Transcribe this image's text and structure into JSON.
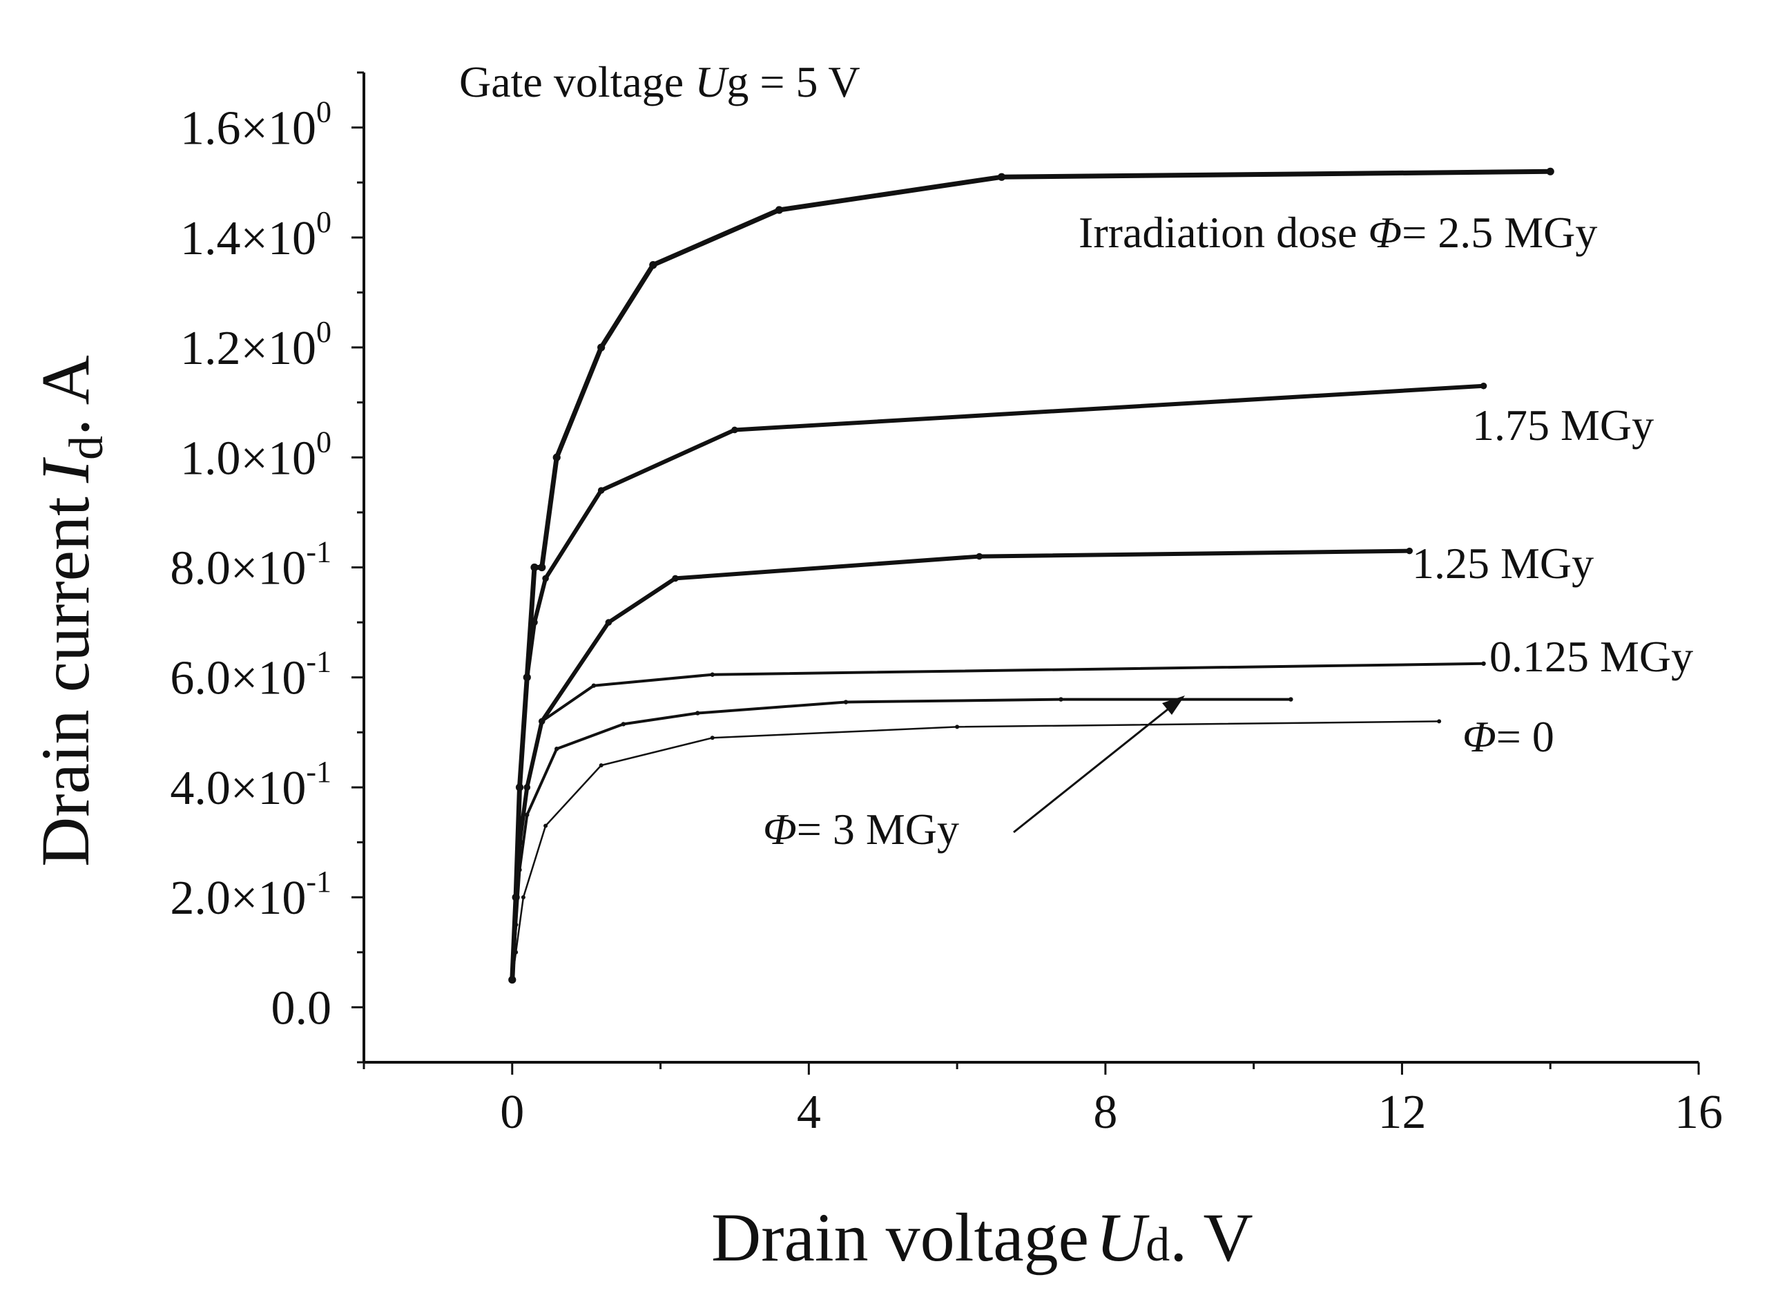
{
  "chart_data": {
    "type": "line",
    "title": "",
    "annotation_title": {
      "prefix": "Gate voltage ",
      "symbol": "U",
      "subscript": "g",
      "suffix": " = 5 V"
    },
    "xlabel": {
      "main": "Drain voltage",
      "symbol": "U",
      "subscript": "d",
      "unit": ". V"
    },
    "ylabel": {
      "main": "Drain current",
      "symbol": "I",
      "subscript": "d",
      "unit": ". A"
    },
    "xlim": [
      -2,
      16
    ],
    "ylim": [
      -0.1,
      1.7
    ],
    "x_ticks": [
      0,
      4,
      8,
      12,
      16
    ],
    "x_tick_labels": [
      "0",
      "4",
      "8",
      "12",
      "16"
    ],
    "y_ticks": [
      0,
      0.2,
      0.4,
      0.6,
      0.8,
      1.0,
      1.2,
      1.4,
      1.6
    ],
    "y_tick_labels": [
      {
        "mantissa": "0.0",
        "exponent": ""
      },
      {
        "mantissa": "2.0×10",
        "exponent": "-1"
      },
      {
        "mantissa": "4.0×10",
        "exponent": "-1"
      },
      {
        "mantissa": "6.0×10",
        "exponent": "-1"
      },
      {
        "mantissa": "8.0×10",
        "exponent": "-1"
      },
      {
        "mantissa": "1.0×10",
        "exponent": "0"
      },
      {
        "mantissa": "1.2×10",
        "exponent": "0"
      },
      {
        "mantissa": "1.4×10",
        "exponent": "0"
      },
      {
        "mantissa": "1.6×10",
        "exponent": "0"
      }
    ],
    "series": [
      {
        "name": "2.5 MGy",
        "label_prefix": "Irradiation dose ",
        "label_symbol": "Φ",
        "label_suffix": "= 2.5 MGy",
        "stroke": 7,
        "x": [
          0,
          0.05,
          0.1,
          0.2,
          0.3,
          0.4,
          0.6,
          1.2,
          1.9,
          3.6,
          6.6,
          14
        ],
        "y": [
          0.05,
          0.2,
          0.4,
          0.6,
          0.8,
          0.8,
          1.0,
          1.2,
          1.35,
          1.45,
          1.51,
          1.52
        ]
      },
      {
        "name": "1.75 MGy",
        "label_prefix": "",
        "label_symbol": "",
        "label_suffix": "1.75 MGy",
        "stroke": 6,
        "x": [
          0,
          0.05,
          0.1,
          0.2,
          0.3,
          0.45,
          1.2,
          3.0,
          13.1
        ],
        "y": [
          0.05,
          0.2,
          0.4,
          0.6,
          0.7,
          0.78,
          0.94,
          1.05,
          1.13
        ]
      },
      {
        "name": "1.25 MGy",
        "label_prefix": "",
        "label_symbol": "",
        "label_suffix": "1.25 MGy",
        "stroke": 6,
        "x": [
          0,
          0.05,
          0.1,
          0.2,
          0.4,
          1.3,
          2.2,
          6.3,
          12.1
        ],
        "y": [
          0.05,
          0.2,
          0.3,
          0.4,
          0.52,
          0.7,
          0.78,
          0.82,
          0.83
        ]
      },
      {
        "name": "0.125 MGy",
        "label_prefix": "",
        "label_symbol": "",
        "label_suffix": "0.125 MGy",
        "stroke": 4,
        "x": [
          0,
          0.05,
          0.1,
          0.2,
          0.4,
          1.1,
          2.7,
          13.1
        ],
        "y": [
          0.05,
          0.15,
          0.3,
          0.4,
          0.52,
          0.585,
          0.605,
          0.625
        ]
      },
      {
        "name": "Φ = 0",
        "label_prefix": "",
        "label_symbol": "Φ",
        "label_suffix": "= 0",
        "stroke": 2.5,
        "x": [
          0,
          0.05,
          0.15,
          0.45,
          1.2,
          2.7,
          6.0,
          12.5
        ],
        "y": [
          0.05,
          0.1,
          0.2,
          0.33,
          0.44,
          0.49,
          0.51,
          0.52
        ]
      },
      {
        "name": "Φ = 3 MGy",
        "label_prefix": "",
        "label_symbol": "Φ",
        "label_suffix": "= 3 MGy",
        "stroke": 4,
        "x": [
          0,
          0.05,
          0.1,
          0.2,
          0.6,
          1.5,
          2.5,
          4.5,
          7.4,
          10.5
        ],
        "y": [
          0.05,
          0.15,
          0.25,
          0.35,
          0.47,
          0.515,
          0.535,
          0.555,
          0.56,
          0.56
        ]
      }
    ]
  }
}
